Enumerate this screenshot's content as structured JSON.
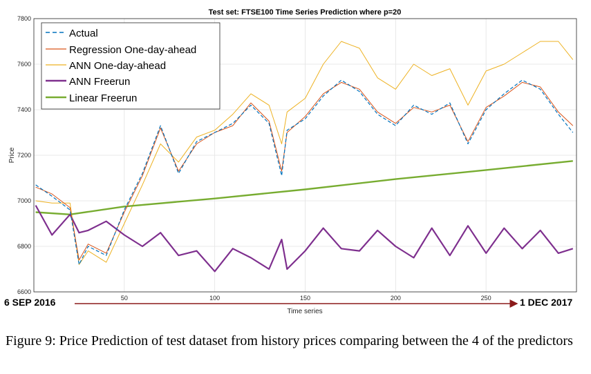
{
  "caption": "Figure 9: Price Prediction of test dataset from history prices comparing between the 4 of the predictors",
  "annotations": {
    "start_date": "6 SEP 2016",
    "end_date": "1 DEC 2017",
    "arrow_color": "#8b1a1a"
  },
  "chart_data": {
    "type": "line",
    "title": "Test set: FTSE100 Time Series Prediction where p=20",
    "xlabel": "Time series",
    "ylabel": "Price",
    "xlim": [
      0,
      300
    ],
    "ylim": [
      6600,
      7800
    ],
    "xticks": [
      50,
      100,
      150,
      200,
      250
    ],
    "yticks": [
      6600,
      6800,
      7000,
      7200,
      7400,
      7600,
      7800
    ],
    "grid": true,
    "legend_position": "top-left",
    "sample_step": 10,
    "series": [
      {
        "name": "Actual",
        "color": "#0072bd",
        "style": "dashed",
        "x": [
          1,
          10,
          20,
          25,
          30,
          40,
          50,
          60,
          70,
          80,
          90,
          100,
          110,
          120,
          130,
          137,
          140,
          150,
          160,
          170,
          180,
          190,
          200,
          210,
          220,
          230,
          240,
          250,
          260,
          270,
          280,
          290,
          298
        ],
        "y": [
          7070,
          7020,
          6960,
          6720,
          6800,
          6760,
          6960,
          7120,
          7330,
          7120,
          7260,
          7300,
          7340,
          7420,
          7340,
          7110,
          7310,
          7360,
          7460,
          7530,
          7480,
          7380,
          7330,
          7420,
          7380,
          7430,
          7250,
          7400,
          7470,
          7530,
          7490,
          7380,
          7300
        ]
      },
      {
        "name": "Regression One-day-ahead",
        "color": "#d95319",
        "style": "solid",
        "x": [
          1,
          10,
          20,
          25,
          30,
          40,
          50,
          60,
          70,
          80,
          90,
          100,
          110,
          120,
          130,
          137,
          140,
          150,
          160,
          170,
          180,
          190,
          200,
          210,
          220,
          230,
          240,
          250,
          260,
          270,
          280,
          290,
          298
        ],
        "y": [
          7060,
          7030,
          6970,
          6740,
          6810,
          6770,
          6950,
          7110,
          7320,
          7130,
          7250,
          7300,
          7330,
          7430,
          7350,
          7130,
          7300,
          7370,
          7470,
          7520,
          7490,
          7390,
          7340,
          7410,
          7390,
          7420,
          7260,
          7410,
          7460,
          7520,
          7500,
          7390,
          7330
        ]
      },
      {
        "name": "ANN One-day-ahead",
        "color": "#edb120",
        "style": "solid",
        "x": [
          1,
          10,
          20,
          25,
          30,
          40,
          50,
          60,
          70,
          80,
          90,
          100,
          110,
          120,
          130,
          137,
          140,
          150,
          160,
          170,
          180,
          190,
          200,
          210,
          220,
          230,
          240,
          250,
          260,
          270,
          280,
          290,
          298
        ],
        "y": [
          7000,
          6990,
          6990,
          6720,
          6780,
          6730,
          6900,
          7070,
          7250,
          7170,
          7280,
          7310,
          7380,
          7470,
          7420,
          7250,
          7390,
          7450,
          7600,
          7700,
          7670,
          7540,
          7490,
          7600,
          7550,
          7580,
          7420,
          7570,
          7600,
          7650,
          7700,
          7700,
          7620
        ]
      },
      {
        "name": "ANN Freerun",
        "color": "#7e2f8e",
        "style": "solid",
        "x": [
          1,
          10,
          20,
          25,
          30,
          40,
          50,
          60,
          70,
          80,
          90,
          100,
          110,
          120,
          130,
          137,
          140,
          150,
          160,
          170,
          180,
          190,
          200,
          210,
          220,
          230,
          240,
          250,
          260,
          270,
          280,
          290,
          298
        ],
        "y": [
          6980,
          6850,
          6940,
          6860,
          6870,
          6910,
          6850,
          6800,
          6860,
          6760,
          6780,
          6690,
          6790,
          6750,
          6700,
          6830,
          6700,
          6780,
          6880,
          6790,
          6780,
          6870,
          6800,
          6750,
          6880,
          6760,
          6890,
          6770,
          6880,
          6790,
          6870,
          6770,
          6790
        ]
      },
      {
        "name": "Linear Freerun",
        "color": "#77ac30",
        "style": "solid",
        "x": [
          1,
          20,
          50,
          100,
          150,
          200,
          250,
          298
        ],
        "y": [
          6950,
          6940,
          6975,
          7010,
          7050,
          7095,
          7135,
          7175
        ]
      }
    ]
  }
}
